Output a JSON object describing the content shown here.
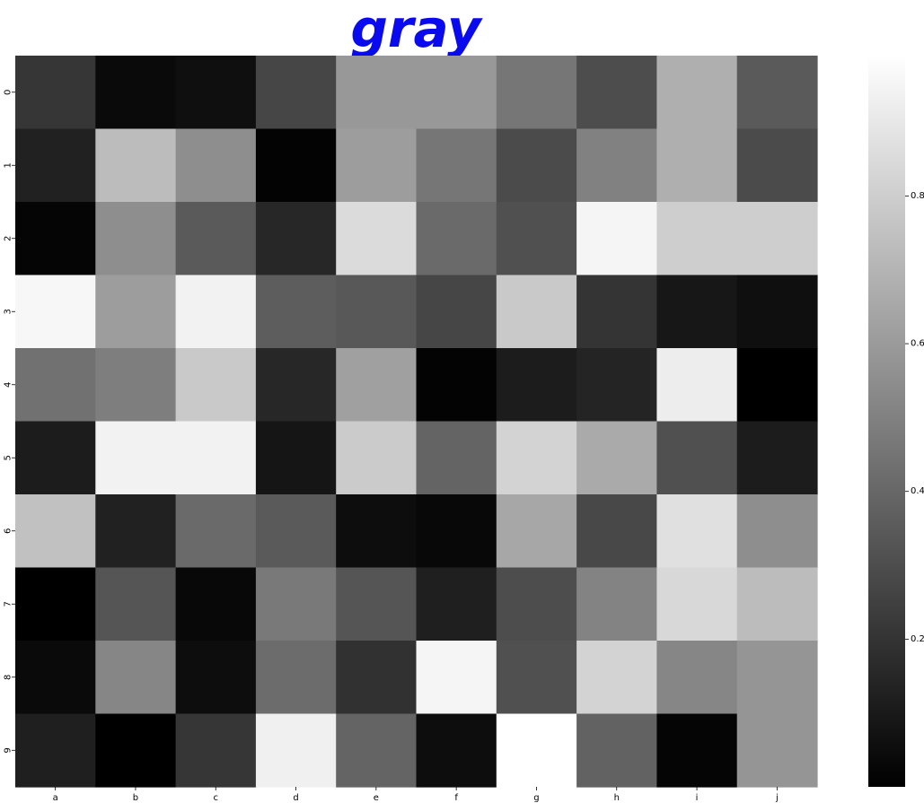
{
  "chart_data": {
    "type": "heatmap",
    "title": "gray",
    "title_color": "#0a0aee",
    "colormap": "gray",
    "x_categories": [
      "a",
      "b",
      "c",
      "d",
      "e",
      "f",
      "g",
      "h",
      "i",
      "j"
    ],
    "y_categories": [
      "0",
      "1",
      "2",
      "3",
      "4",
      "5",
      "6",
      "7",
      "8",
      "9"
    ],
    "values": [
      [
        0.21,
        0.04,
        0.06,
        0.27,
        0.59,
        0.59,
        0.46,
        0.3,
        0.68,
        0.35
      ],
      [
        0.13,
        0.73,
        0.55,
        0.01,
        0.61,
        0.46,
        0.29,
        0.5,
        0.68,
        0.29
      ],
      [
        0.02,
        0.55,
        0.35,
        0.15,
        0.85,
        0.41,
        0.31,
        0.95,
        0.8,
        0.8
      ],
      [
        0.96,
        0.61,
        0.94,
        0.36,
        0.34,
        0.27,
        0.78,
        0.2,
        0.09,
        0.06
      ],
      [
        0.44,
        0.49,
        0.78,
        0.15,
        0.62,
        0.01,
        0.11,
        0.14,
        0.92,
        0.0
      ],
      [
        0.11,
        0.94,
        0.94,
        0.08,
        0.79,
        0.39,
        0.82,
        0.66,
        0.31,
        0.11
      ],
      [
        0.75,
        0.13,
        0.41,
        0.35,
        0.05,
        0.03,
        0.65,
        0.28,
        0.87,
        0.55
      ],
      [
        0.0,
        0.33,
        0.03,
        0.47,
        0.33,
        0.12,
        0.3,
        0.51,
        0.84,
        0.73
      ],
      [
        0.04,
        0.52,
        0.05,
        0.42,
        0.19,
        0.95,
        0.31,
        0.82,
        0.52,
        0.58
      ],
      [
        0.12,
        0.0,
        0.21,
        0.93,
        0.39,
        0.05,
        0.99,
        0.38,
        0.02,
        0.58
      ]
    ],
    "colorbar": {
      "vmin": 0.0,
      "vmax": 0.99,
      "ticks": [
        0.2,
        0.4,
        0.6,
        0.8
      ],
      "tick_labels": [
        "0.2",
        "0.4",
        "0.6",
        "0.8"
      ]
    }
  }
}
